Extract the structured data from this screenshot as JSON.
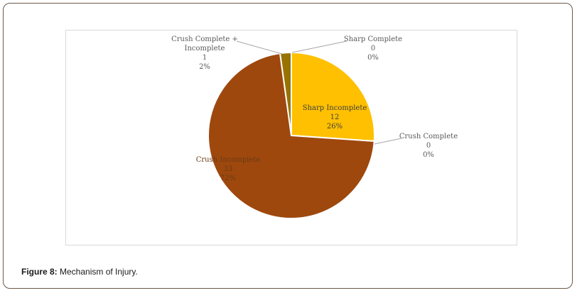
{
  "chart_data": {
    "type": "pie",
    "slices": [
      {
        "label": "Sharp Complete",
        "value": 0,
        "percent": "0%",
        "color": "#d9a400"
      },
      {
        "label": "Sharp Incomplete",
        "value": 12,
        "percent": "26%",
        "color": "#fec000"
      },
      {
        "label": "Crush Complete",
        "value": 0,
        "percent": "0%",
        "color": "#c55a11"
      },
      {
        "label": "Crush Incomplete",
        "value": 33,
        "percent": "72%",
        "color": "#9e480e"
      },
      {
        "label": "Crush Complete + Incomplete",
        "value": 1,
        "percent": "2%",
        "color": "#997300"
      }
    ]
  },
  "caption": {
    "prefix": "Figure 8:",
    "text": " Mechanism of Injury."
  }
}
